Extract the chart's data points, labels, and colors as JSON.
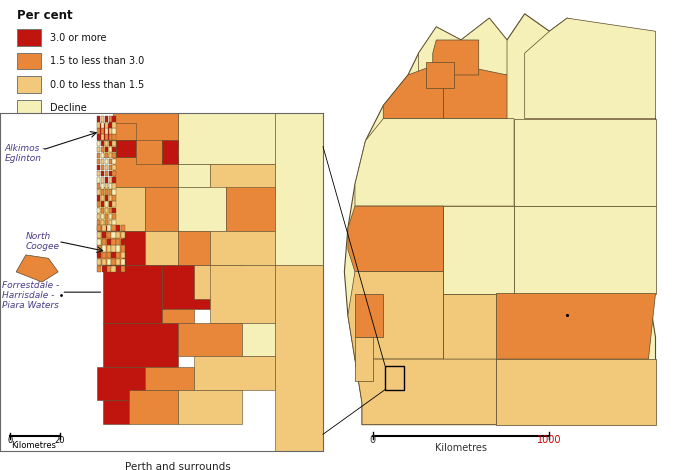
{
  "background_color": "#ffffff",
  "legend_title": "Per cent",
  "legend_items": [
    {
      "label": "3.0 or more",
      "color": "#c0150f"
    },
    {
      "label": "1.5 to less than 3.0",
      "color": "#e8873a"
    },
    {
      "label": "0.0 to less than 1.5",
      "color": "#f2c97a"
    },
    {
      "label": "Decline",
      "color": "#f5f0b8"
    }
  ],
  "perth_label": "Perth and surrounds",
  "perth_scale_label": "Kilometres",
  "perth_scale_0": "0",
  "perth_scale_20": "20",
  "wa_scale_label": "Kilometres",
  "wa_scale_0": "0",
  "wa_scale_1000": "1000",
  "label_alkimos": "Alkimos -\nEglinton",
  "label_northcoogee": "North\nCoogee",
  "label_forrestdale": "Forrestdale -\nHarrisdale -\nPiara Waters",
  "color_dark_red": "#c0150f",
  "color_orange": "#e8873a",
  "color_light_orange": "#f2c97a",
  "color_pale_yellow": "#f5f0b8",
  "color_border": "#5a4a2a",
  "label_color": "#4a3a8a",
  "figsize": [
    6.8,
    4.7
  ],
  "dpi": 100
}
